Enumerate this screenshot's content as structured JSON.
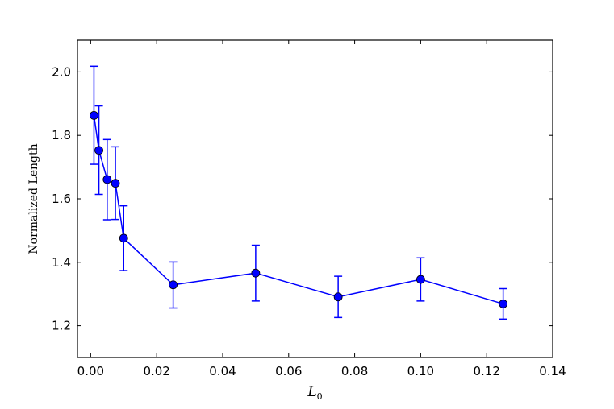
{
  "chart_data": {
    "type": "line",
    "title": "",
    "xlabel": "L",
    "xlabel_subscript": "0",
    "ylabel": "Normalized Length",
    "xlim": [
      -0.004,
      0.14
    ],
    "ylim": [
      1.1,
      2.1
    ],
    "xticks": [
      0.0,
      0.02,
      0.04,
      0.06,
      0.08,
      0.1,
      0.12,
      0.14
    ],
    "xtick_labels": [
      "0.00",
      "0.02",
      "0.04",
      "0.06",
      "0.08",
      "0.10",
      "0.12",
      "0.14"
    ],
    "yticks": [
      1.2,
      1.4,
      1.6,
      1.8,
      2.0
    ],
    "ytick_labels": [
      "1.2",
      "1.4",
      "1.6",
      "1.8",
      "2.0"
    ],
    "grid": false,
    "legend": "none",
    "series": [
      {
        "color": "#0000ff",
        "marker": "circle",
        "x": [
          0.001,
          0.0025,
          0.005,
          0.0075,
          0.01,
          0.025,
          0.05,
          0.075,
          0.1,
          0.125
        ],
        "y": [
          1.863,
          1.753,
          1.661,
          1.649,
          1.476,
          1.329,
          1.366,
          1.291,
          1.346,
          1.269
        ],
        "err_low": [
          1.709,
          1.614,
          1.534,
          1.535,
          1.374,
          1.256,
          1.278,
          1.226,
          1.278,
          1.221
        ],
        "err_high": [
          2.018,
          1.893,
          1.787,
          1.764,
          1.578,
          1.401,
          1.454,
          1.356,
          1.414,
          1.317
        ]
      }
    ]
  }
}
